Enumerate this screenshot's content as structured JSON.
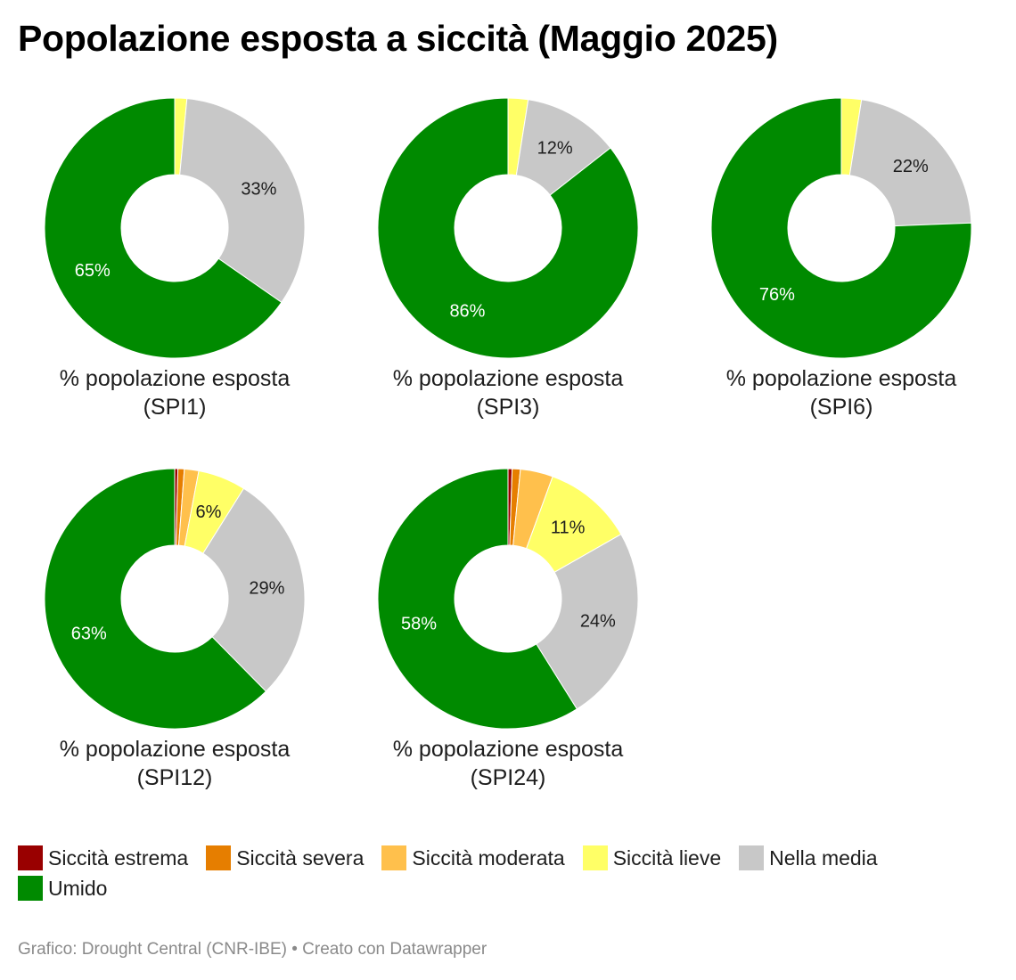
{
  "title": "Popolazione esposta a siccità (Maggio 2025)",
  "source": "Grafico: Drought Central (CNR-IBE) • Creato con Datawrapper",
  "colors": {
    "Siccità estrema": "#990000",
    "Siccità severa": "#e67e00",
    "Siccità moderata": "#ffc04c",
    "Siccità lieve": "#ffff66",
    "Nella media": "#c8c8c8",
    "Umido": "#008a00"
  },
  "legend": [
    "Siccità estrema",
    "Siccità severa",
    "Siccità moderata",
    "Siccità lieve",
    "Nella media",
    "Umido"
  ],
  "chart_data": [
    {
      "type": "pie",
      "caption_line1": "% popolazione esposta",
      "caption_line2": "(SPI1)",
      "categories": [
        "Siccità estrema",
        "Siccità severa",
        "Siccità moderata",
        "Siccità lieve",
        "Nella media",
        "Umido"
      ],
      "values": [
        0,
        0,
        0,
        1.5,
        33,
        65
      ],
      "labels": [
        "",
        "",
        "",
        "",
        "33%",
        "65%"
      ]
    },
    {
      "type": "pie",
      "caption_line1": "% popolazione esposta",
      "caption_line2": "(SPI3)",
      "categories": [
        "Siccità estrema",
        "Siccità severa",
        "Siccità moderata",
        "Siccità lieve",
        "Nella media",
        "Umido"
      ],
      "values": [
        0,
        0,
        0,
        2.5,
        12,
        86
      ],
      "labels": [
        "",
        "",
        "",
        "",
        "12%",
        "86%"
      ]
    },
    {
      "type": "pie",
      "caption_line1": "% popolazione esposta",
      "caption_line2": "(SPI6)",
      "categories": [
        "Siccità estrema",
        "Siccità severa",
        "Siccità moderata",
        "Siccità lieve",
        "Nella media",
        "Umido"
      ],
      "values": [
        0,
        0,
        0,
        2.5,
        22,
        76
      ],
      "labels": [
        "",
        "",
        "",
        "",
        "22%",
        "76%"
      ]
    },
    {
      "type": "pie",
      "caption_line1": "% popolazione esposta",
      "caption_line2": "(SPI12)",
      "categories": [
        "Siccità estrema",
        "Siccità severa",
        "Siccità moderata",
        "Siccità lieve",
        "Nella media",
        "Umido"
      ],
      "values": [
        0.4,
        0.8,
        1.8,
        6,
        29,
        63
      ],
      "labels": [
        "",
        "",
        "",
        "6%",
        "29%",
        "63%"
      ]
    },
    {
      "type": "pie",
      "caption_line1": "% popolazione esposta",
      "caption_line2": "(SPI24)",
      "categories": [
        "Siccità estrema",
        "Siccità severa",
        "Siccità moderata",
        "Siccità lieve",
        "Nella media",
        "Umido"
      ],
      "values": [
        0.5,
        1,
        4,
        11,
        24,
        58
      ],
      "labels": [
        "",
        "",
        "",
        "11%",
        "24%",
        "58%"
      ]
    }
  ]
}
